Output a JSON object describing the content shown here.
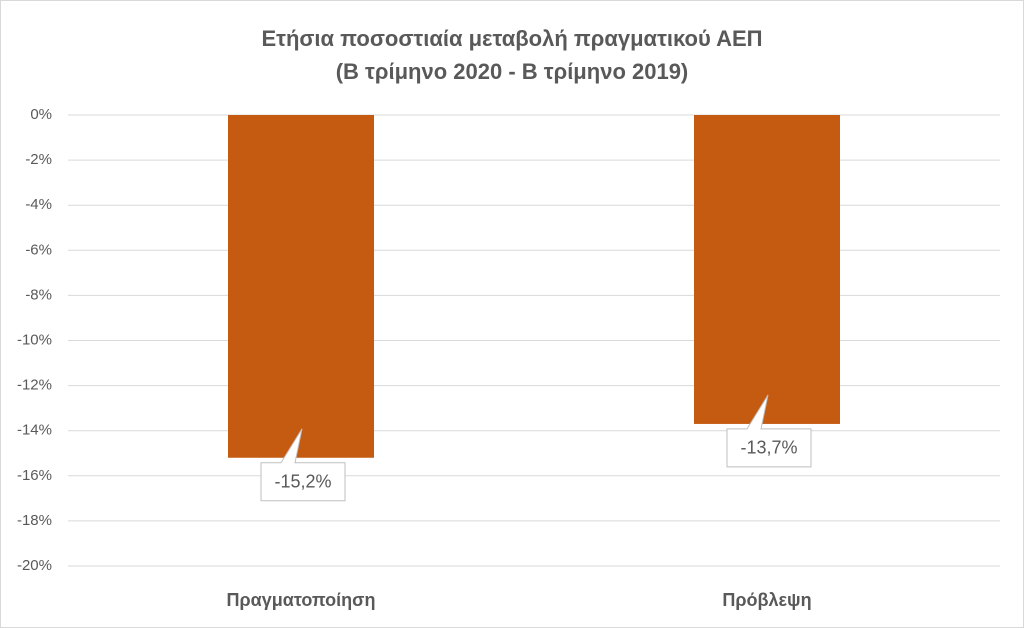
{
  "chart_data": {
    "type": "bar",
    "title": "Ετήσια ποσοστιαία μεταβολή πραγματικού ΑΕΠ",
    "subtitle": "(Β τρίμηνο 2020 - Β τρίμηνο 2019)",
    "categories": [
      "Πραγματοποίηση",
      "Πρόβλεψη"
    ],
    "values": [
      -15.2,
      -13.7
    ],
    "value_labels": [
      "-15,2%",
      "-13,7%"
    ],
    "color": "#c55a11",
    "ylim": [
      -20,
      0
    ],
    "yticks": [
      {
        "value": 0,
        "label": "0%"
      },
      {
        "value": -2,
        "label": "-2%"
      },
      {
        "value": -4,
        "label": "-4%"
      },
      {
        "value": -6,
        "label": "-6%"
      },
      {
        "value": -8,
        "label": "-8%"
      },
      {
        "value": -10,
        "label": "-10%"
      },
      {
        "value": -12,
        "label": "-12%"
      },
      {
        "value": -14,
        "label": "-14%"
      },
      {
        "value": -16,
        "label": "-16%"
      },
      {
        "value": -18,
        "label": "-18%"
      },
      {
        "value": -20,
        "label": "-20%"
      }
    ],
    "grid": true
  }
}
